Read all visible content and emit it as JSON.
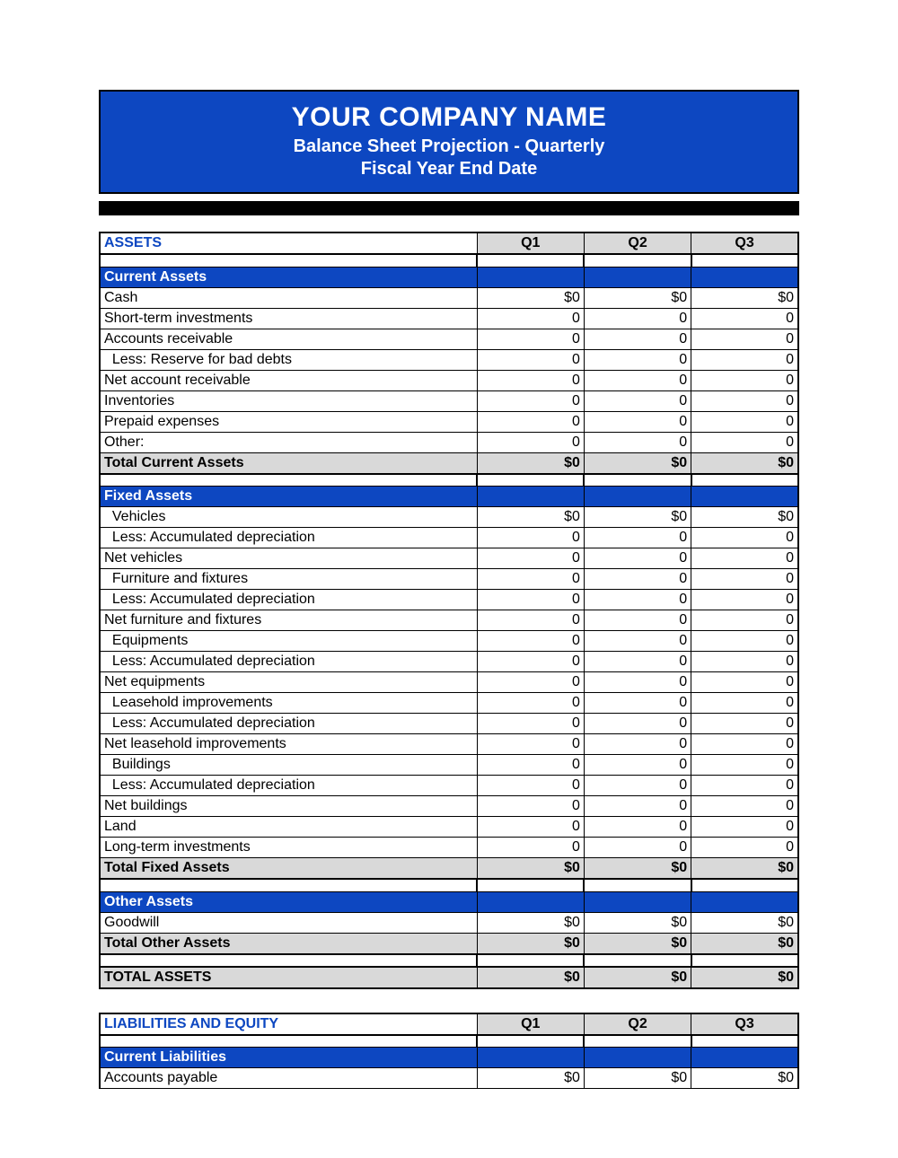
{
  "colors": {
    "brand_blue": "#0d47c1",
    "grey_fill": "#d9d9d9",
    "border": "#000000",
    "text": "#000000",
    "white": "#ffffff"
  },
  "header": {
    "company": "YOUR COMPANY NAME",
    "sub1": "Balance Sheet Projection - Quarterly",
    "sub2": "Fiscal Year End Date"
  },
  "quarters": [
    "Q1",
    "Q2",
    "Q3"
  ],
  "sections": [
    {
      "kind": "section-head",
      "title": "ASSETS",
      "groups": [
        {
          "title": "Current Assets",
          "rows": [
            {
              "label": "Cash",
              "vals": [
                "$0",
                "$0",
                "$0"
              ]
            },
            {
              "label": "Short-term investments",
              "vals": [
                "0",
                "0",
                "0"
              ]
            },
            {
              "label": "Accounts receivable",
              "vals": [
                "0",
                "0",
                "0"
              ]
            },
            {
              "label": "  Less: Reserve for bad debts",
              "vals": [
                "0",
                "0",
                "0"
              ]
            },
            {
              "label": "Net account receivable",
              "vals": [
                "0",
                "0",
                "0"
              ]
            },
            {
              "label": "Inventories",
              "vals": [
                "0",
                "0",
                "0"
              ]
            },
            {
              "label": "Prepaid expenses",
              "vals": [
                "0",
                "0",
                "0"
              ]
            },
            {
              "label": "Other:",
              "vals": [
                "0",
                "0",
                "0"
              ]
            }
          ],
          "subtotal": {
            "label": "Total Current Assets",
            "vals": [
              "$0",
              "$0",
              "$0"
            ]
          }
        },
        {
          "title": "Fixed Assets",
          "rows": [
            {
              "label": "  Vehicles",
              "vals": [
                "$0",
                "$0",
                "$0"
              ]
            },
            {
              "label": "  Less: Accumulated depreciation",
              "vals": [
                "0",
                "0",
                "0"
              ]
            },
            {
              "label": "Net vehicles",
              "vals": [
                "0",
                "0",
                "0"
              ]
            },
            {
              "label": "  Furniture and fixtures",
              "vals": [
                "0",
                "0",
                "0"
              ]
            },
            {
              "label": "  Less: Accumulated depreciation",
              "vals": [
                "0",
                "0",
                "0"
              ]
            },
            {
              "label": "Net furniture and fixtures",
              "vals": [
                "0",
                "0",
                "0"
              ]
            },
            {
              "label": "  Equipments",
              "vals": [
                "0",
                "0",
                "0"
              ]
            },
            {
              "label": "  Less: Accumulated depreciation",
              "vals": [
                "0",
                "0",
                "0"
              ]
            },
            {
              "label": "Net equipments",
              "vals": [
                "0",
                "0",
                "0"
              ]
            },
            {
              "label": "  Leasehold improvements",
              "vals": [
                "0",
                "0",
                "0"
              ]
            },
            {
              "label": "  Less: Accumulated depreciation",
              "vals": [
                "0",
                "0",
                "0"
              ]
            },
            {
              "label": "Net leasehold improvements",
              "vals": [
                "0",
                "0",
                "0"
              ]
            },
            {
              "label": "  Buildings",
              "vals": [
                "0",
                "0",
                "0"
              ]
            },
            {
              "label": "  Less: Accumulated depreciation",
              "vals": [
                "0",
                "0",
                "0"
              ]
            },
            {
              "label": "Net buildings",
              "vals": [
                "0",
                "0",
                "0"
              ]
            },
            {
              "label": "Land",
              "vals": [
                "0",
                "0",
                "0"
              ]
            },
            {
              "label": "Long-term investments",
              "vals": [
                "0",
                "0",
                "0"
              ]
            }
          ],
          "subtotal": {
            "label": "Total Fixed Assets",
            "vals": [
              "$0",
              "$0",
              "$0"
            ]
          }
        },
        {
          "title": "Other Assets",
          "rows": [
            {
              "label": "Goodwill",
              "vals": [
                "$0",
                "$0",
                "$0"
              ]
            }
          ],
          "subtotal": {
            "label": "Total Other Assets",
            "vals": [
              "$0",
              "$0",
              "$0"
            ]
          }
        }
      ],
      "grand": {
        "label": "TOTAL ASSETS",
        "vals": [
          "$0",
          "$0",
          "$0"
        ]
      }
    },
    {
      "kind": "section-head",
      "title": "LIABILITIES AND EQUITY",
      "groups": [
        {
          "title": "Current Liabilities",
          "rows": [
            {
              "label": "Accounts payable",
              "vals": [
                "$0",
                "$0",
                "$0"
              ]
            }
          ]
        }
      ]
    }
  ]
}
